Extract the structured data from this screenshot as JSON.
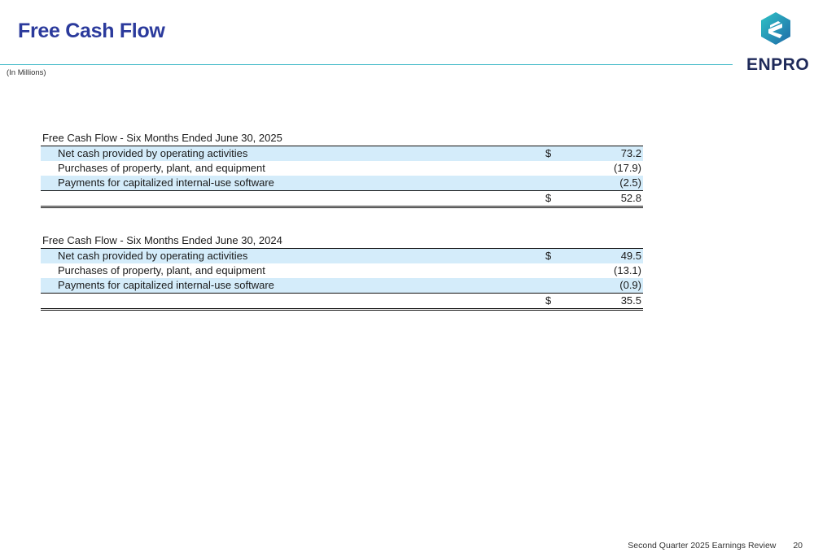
{
  "header": {
    "title": "Free Cash Flow",
    "subtitle": "(In Millions)",
    "logo_text": "ENPRO",
    "rule_color": "#3fb8c7",
    "title_color": "#2b3a9c"
  },
  "tables": [
    {
      "title": "Free Cash Flow - Six Months Ended June 30, 2025",
      "rows": [
        {
          "label": "Net cash provided by operating activities",
          "currency": "$",
          "value": "73.2"
        },
        {
          "label": "Purchases of property, plant, and equipment",
          "currency": "",
          "value": "(17.9)"
        },
        {
          "label": "Payments for capitalized internal-use software",
          "currency": "",
          "value": "(2.5)"
        }
      ],
      "total": {
        "currency": "$",
        "value": "52.8"
      }
    },
    {
      "title": "Free Cash Flow - Six Months Ended June 30, 2024",
      "rows": [
        {
          "label": "Net cash provided by operating activities",
          "currency": "$",
          "value": "49.5"
        },
        {
          "label": "Purchases of property, plant, and equipment",
          "currency": "",
          "value": "(13.1)"
        },
        {
          "label": "Payments for capitalized internal-use software",
          "currency": "",
          "value": "(0.9)"
        }
      ],
      "total": {
        "currency": "$",
        "value": "35.5"
      }
    }
  ],
  "footer": {
    "text": "Second Quarter 2025 Earnings Review",
    "page_number": "20"
  },
  "colors": {
    "row_shade": "#d4ecfa"
  }
}
